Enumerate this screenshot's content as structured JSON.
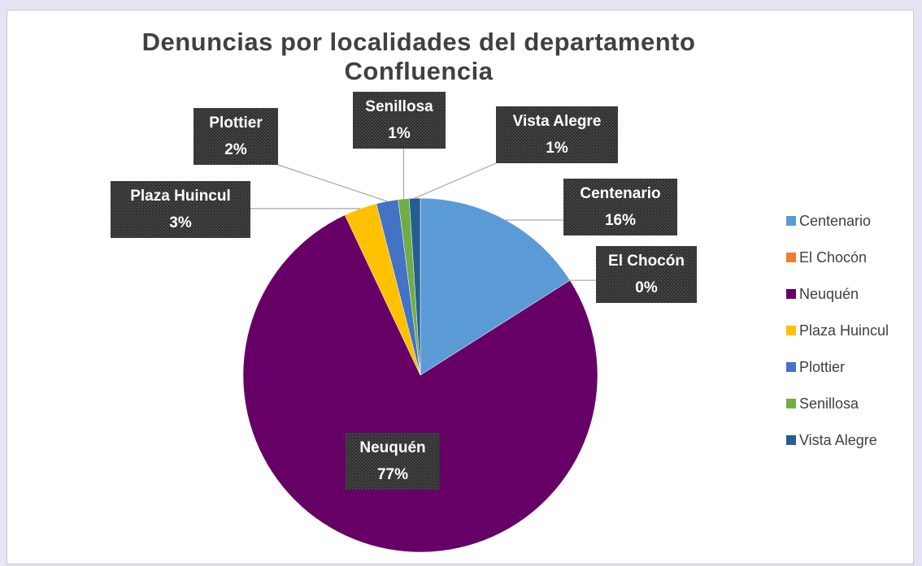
{
  "chart_data": {
    "type": "pie",
    "title": "Denuncias por localidades del departamento Confluencia",
    "categories": [
      "Centenario",
      "El Chocón",
      "Neuquén",
      "Plaza Huincul",
      "Plottier",
      "Senillosa",
      "Vista Alegre"
    ],
    "values": [
      16,
      0,
      77,
      3,
      2,
      1,
      1
    ],
    "value_labels": [
      "16%",
      "0%",
      "77%",
      "3%",
      "2%",
      "1%",
      "1%"
    ],
    "colors": [
      "#5b9bd5",
      "#ed7d31",
      "#660066",
      "#ffc000",
      "#4472c4",
      "#70ad47",
      "#255e91"
    ],
    "legend": "right"
  }
}
